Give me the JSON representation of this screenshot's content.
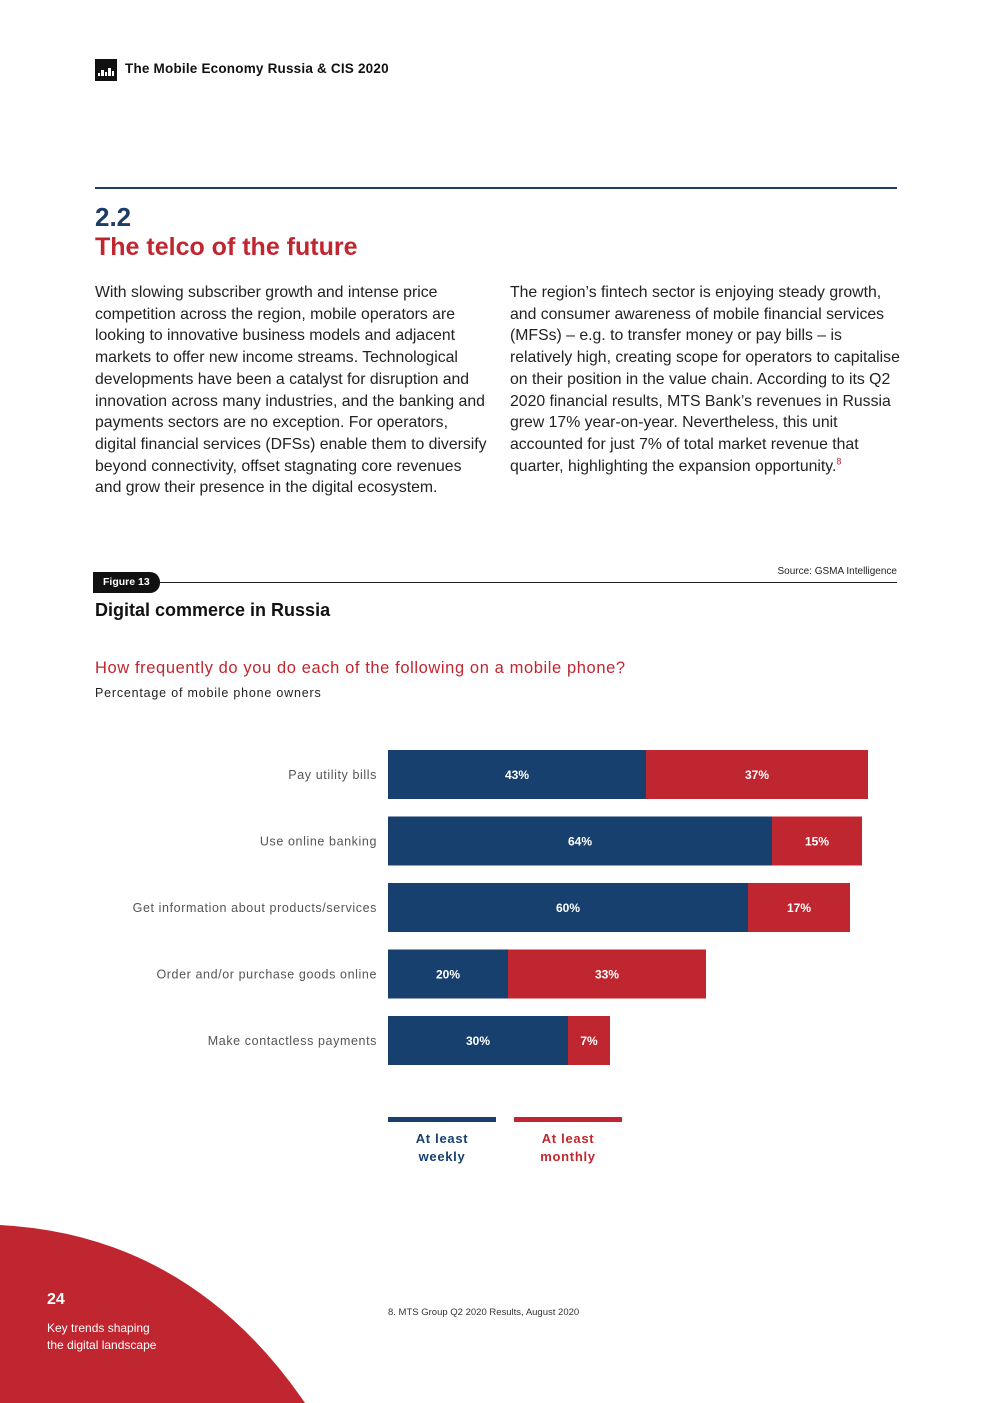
{
  "header": {
    "doc_title": "The Mobile Economy Russia & CIS 2020"
  },
  "section": {
    "number": "2.2",
    "title": "The telco of the future"
  },
  "body": {
    "left": "With slowing subscriber growth and intense price competition across the region, mobile operators are looking to innovative business models and adjacent markets to offer new income streams. Technological developments have been a catalyst for disruption and innovation across many industries, and the banking and payments sectors are no exception. For operators, digital financial services (DFSs) enable them to diversify beyond connectivity, offset stagnating core revenues and grow their presence in the digital ecosystem.",
    "right": "The region’s fintech sector is enjoying steady growth, and consumer awareness of mobile financial services (MFSs) – e.g. to transfer money or pay bills – is relatively high, creating scope for operators to capitalise on their position in the value chain. According to its Q2 2020 financial results, MTS Bank’s revenues in Russia grew 17% year-on-year. Nevertheless, this unit accounted for just 7% of total market revenue that quarter, highlighting the expansion opportunity.",
    "right_footnote_ref": "8"
  },
  "figure": {
    "badge": "Figure 13",
    "source": "Source: GSMA Intelligence",
    "title": "Digital commerce in Russia",
    "question": "How frequently do you do each of the following on a mobile phone?",
    "subtitle": "Percentage of mobile phone owners"
  },
  "chart_data": {
    "type": "bar",
    "orientation": "horizontal",
    "stacked": true,
    "categories": [
      "Pay utility bills",
      "Use online banking",
      "Get information about products/services",
      "Order and/or purchase goods online",
      "Make contactless payments"
    ],
    "series": [
      {
        "name": "At least weekly",
        "values": [
          43,
          64,
          60,
          20,
          30
        ],
        "color": "#17406e"
      },
      {
        "name": "At least monthly",
        "values": [
          37,
          15,
          17,
          33,
          7
        ],
        "color": "#c0262f"
      }
    ],
    "value_suffix": "%",
    "legend_position": "bottom",
    "grid": false
  },
  "legend": {
    "weekly_line1": "At least",
    "weekly_line2": "weekly",
    "monthly_line1": "At least",
    "monthly_line2": "monthly"
  },
  "footer": {
    "page_number": "24",
    "section_line1": "Key trends shaping",
    "section_line2": "the digital landscape",
    "footnote": "8.    MTS Group Q2 2020 Results, August 2020",
    "corner_color": "#c0262f"
  }
}
